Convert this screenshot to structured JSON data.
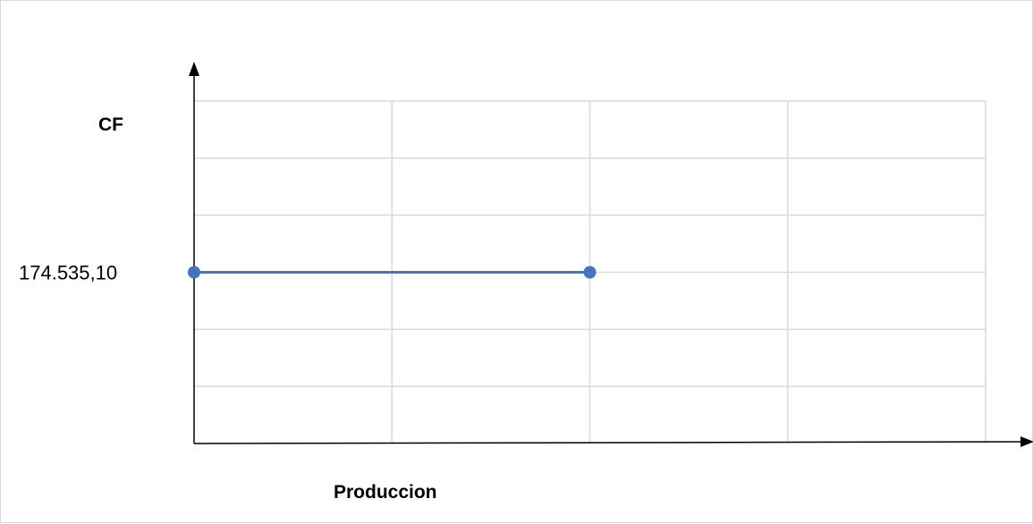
{
  "chart_data": {
    "type": "line",
    "ylabel": "CF",
    "xlabel": "Produccion",
    "grid": true,
    "gridlines_x": 4,
    "gridlines_y": 6,
    "x_range": [
      0,
      4
    ],
    "y_range": [
      0,
      6
    ],
    "series": [
      {
        "color": "#4472c4",
        "points": [
          {
            "x": 0,
            "y": 3
          },
          {
            "x": 2,
            "y": 3
          }
        ]
      }
    ],
    "value_label": "174.535,10",
    "value_label_y": 3
  },
  "colors": {
    "series": "#4472c4",
    "grid": "#d9d9d9",
    "axis": "#000000"
  }
}
